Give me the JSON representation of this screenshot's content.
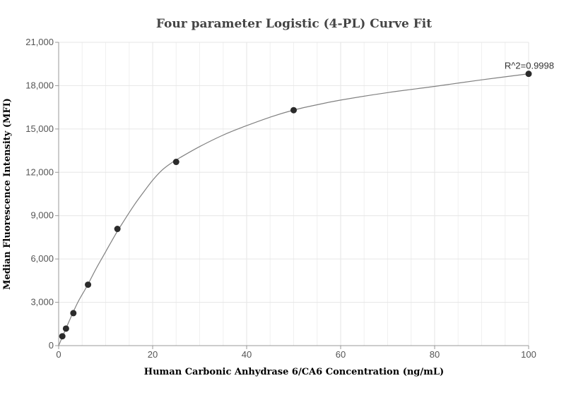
{
  "chart_data": {
    "type": "scatter",
    "title": "Four parameter Logistic (4-PL) Curve Fit",
    "xlabel": "Human Carbonic Anhydrase 6/CA6 Concentration (ng/mL)",
    "ylabel": "Median Fluorescence Intensity (MFI)",
    "xlim": [
      0,
      100
    ],
    "ylim": [
      0,
      21000
    ],
    "x_ticks": [
      0,
      20,
      40,
      60,
      80,
      100
    ],
    "x_tick_labels": [
      "0",
      "20",
      "40",
      "60",
      "80",
      "100"
    ],
    "y_ticks": [
      0,
      3000,
      6000,
      9000,
      12000,
      15000,
      18000,
      21000
    ],
    "y_tick_labels": [
      "0",
      "3,000",
      "6,000",
      "9,000",
      "12,000",
      "15,000",
      "18,000",
      "21,000"
    ],
    "grid": true,
    "series": [
      {
        "x": [
          0.78,
          1.56,
          3.13,
          6.25,
          12.5,
          25,
          50,
          100
        ],
        "y": [
          650,
          1180,
          2250,
          4220,
          8080,
          12720,
          16300,
          18820
        ]
      }
    ],
    "fit_curve": {
      "model": "4PL",
      "x": [
        0,
        2,
        4,
        6,
        8,
        10,
        12,
        14,
        16,
        18,
        20,
        22,
        24,
        26,
        30,
        35,
        40,
        45,
        50,
        55,
        60,
        70,
        80,
        90,
        100
      ],
      "y": [
        0,
        1520,
        2950,
        4100,
        5350,
        6500,
        7650,
        8700,
        9700,
        10600,
        11450,
        12150,
        12650,
        13050,
        13780,
        14580,
        15230,
        15820,
        16310,
        16680,
        17000,
        17520,
        17950,
        18400,
        18820
      ]
    },
    "annotation": "R^2=0.9998",
    "colors": {
      "point": "#2b2b2b",
      "curve": "#808080",
      "grid": "#e6e6e6"
    }
  }
}
